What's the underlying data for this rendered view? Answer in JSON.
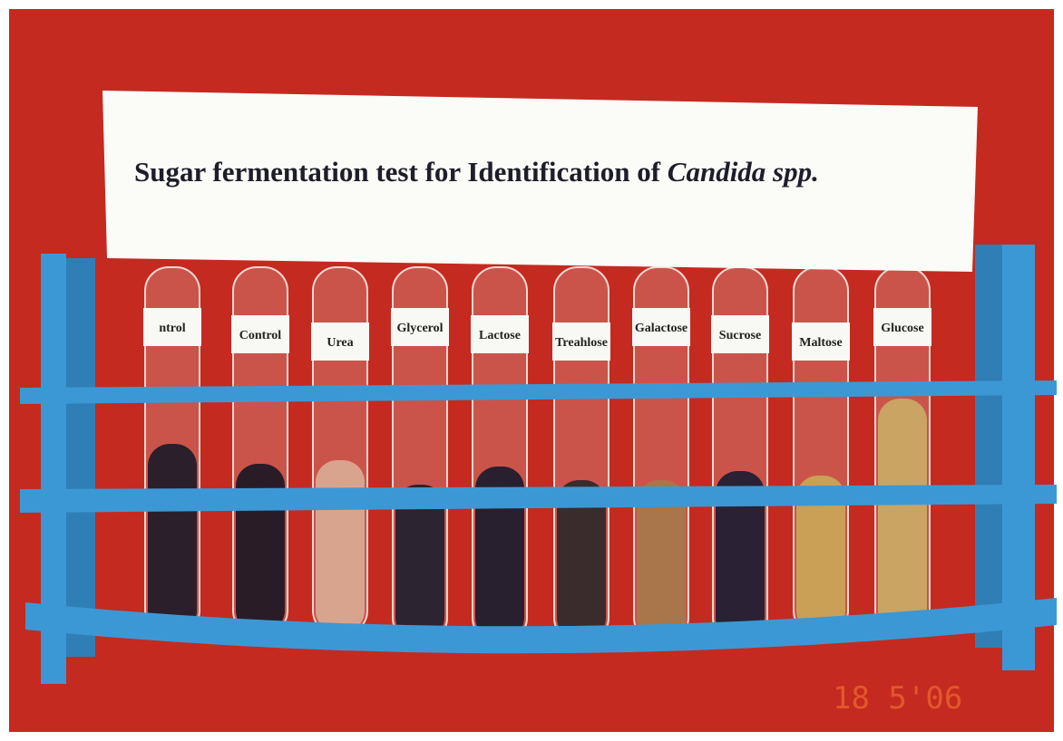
{
  "sign": {
    "title": "Sugar fermentation test for Identification of ",
    "title_italic": "Candida spp."
  },
  "tubes": [
    {
      "label": "ntrol",
      "liquid": "#2b1f2c",
      "level": 490
    },
    {
      "label": "Control",
      "liquid": "#2a1c26",
      "level": 512
    },
    {
      "label": "Urea",
      "liquid": "#d9a48e",
      "level": 508
    },
    {
      "label": "Glycerol",
      "liquid": "#2c2430",
      "level": 535
    },
    {
      "label": "Lactose",
      "liquid": "#28202e",
      "level": 515
    },
    {
      "label": "Treahlose",
      "liquid": "#3a2c2c",
      "level": 530
    },
    {
      "label": "Galactose",
      "liquid": "#a8764a",
      "level": 530
    },
    {
      "label": "Sucrose",
      "liquid": "#2a2234",
      "level": 520
    },
    {
      "label": "Maltose",
      "liquid": "#c9a056",
      "level": 525
    },
    {
      "label": "Glucose",
      "liquid": "#c9a463",
      "level": 440
    }
  ],
  "date_stamp": "18 5'06"
}
